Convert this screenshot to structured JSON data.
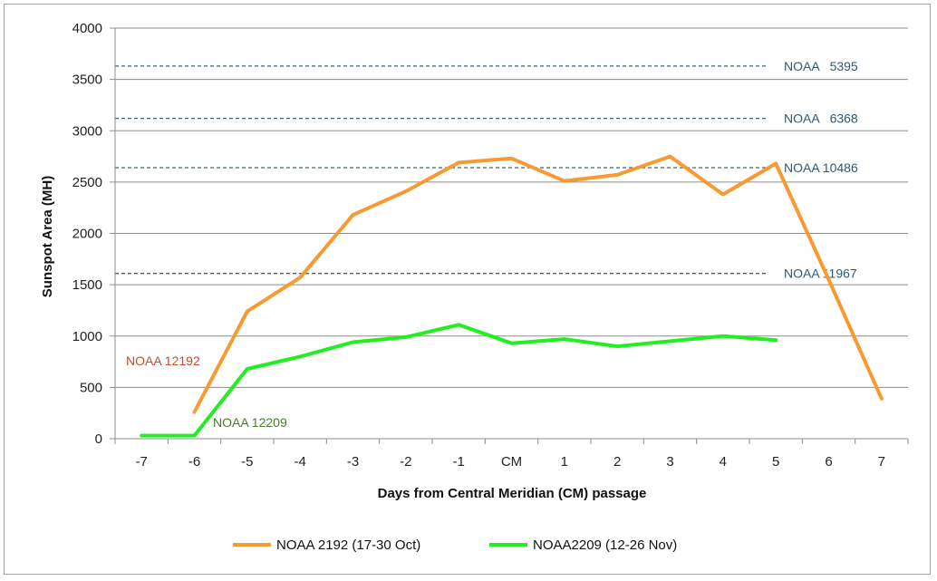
{
  "chart_data": {
    "type": "line",
    "xlabel": "Days from Central Meridian (CM) passage",
    "ylabel": "Sunspot Area (MH)",
    "ylim": [
      0,
      4000
    ],
    "yticks": [
      "0",
      "500",
      "1000",
      "1500",
      "2000",
      "2500",
      "3000",
      "3500",
      "4000"
    ],
    "ytick_values": [
      0,
      500,
      1000,
      1500,
      2000,
      2500,
      3000,
      3500,
      4000
    ],
    "categories": [
      "-7",
      "-6",
      "-5",
      "-4",
      "-3",
      "-2",
      "-1",
      "CM",
      "1",
      "2",
      "3",
      "4",
      "5",
      "6",
      "7"
    ],
    "grid": "horizontal",
    "legend_position": "bottom",
    "series": [
      {
        "name": "NOAA 2192 (17-30 Oct)",
        "color": "#f79a32",
        "values": [
          null,
          260,
          1240,
          1570,
          2180,
          2410,
          2690,
          2730,
          2510,
          2570,
          2750,
          2380,
          2680,
          1550,
          390
        ]
      },
      {
        "name": "NOAA2209 (12-26 Nov)",
        "color": "#22ee22",
        "values": [
          30,
          30,
          680,
          800,
          940,
          990,
          1110,
          930,
          970,
          900,
          950,
          1000,
          960,
          null,
          null
        ]
      }
    ],
    "reference_lines": [
      {
        "label": "NOAA   5395",
        "value": 3630
      },
      {
        "label": "NOAA   6368",
        "value": 3120
      },
      {
        "label": "NOAA 10486",
        "value": 2640
      },
      {
        "label": "NOAA 11967",
        "value": 1610
      }
    ],
    "annotations": [
      {
        "text": "NOAA 12192",
        "color": "#c0502a"
      },
      {
        "text": "NOAA 12209",
        "color": "#4c7a2c"
      }
    ]
  }
}
